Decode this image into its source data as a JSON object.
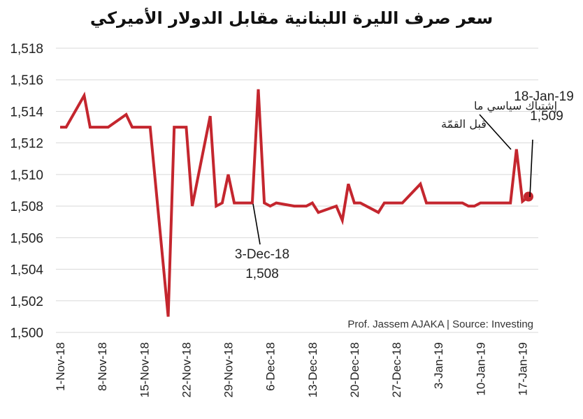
{
  "chart_data": {
    "type": "line",
    "title": "سعر صرف الليرة اللبنانية مقابل الدولار الأميركي",
    "source": "Prof. Jassem AJAKA | Source: Investing",
    "ylim": [
      1500,
      1518
    ],
    "yticks": [
      "1,500",
      "1,502",
      "1,504",
      "1,506",
      "1,508",
      "1,510",
      "1,512",
      "1,514",
      "1,516",
      "1,518"
    ],
    "xticks": [
      "1-Nov-18",
      "8-Nov-18",
      "15-Nov-18",
      "22-Nov-18",
      "29-Nov-18",
      "6-Dec-18",
      "13-Dec-18",
      "20-Dec-18",
      "27-Dec-18",
      "3-Jan-19",
      "10-Jan-19",
      "17-Jan-19"
    ],
    "grid": true,
    "color": "#c4262e",
    "series": [
      {
        "x": [
          "1-Nov-18",
          "2-Nov-18",
          "5-Nov-18",
          "6-Nov-18",
          "7-Nov-18",
          "8-Nov-18",
          "9-Nov-18",
          "12-Nov-18",
          "13-Nov-18",
          "14-Nov-18",
          "15-Nov-18",
          "16-Nov-18",
          "19-Nov-18",
          "20-Nov-18",
          "21-Nov-18",
          "22-Nov-18",
          "23-Nov-18",
          "26-Nov-18",
          "27-Nov-18",
          "28-Nov-18",
          "29-Nov-18",
          "30-Nov-18",
          "3-Dec-18",
          "4-Dec-18",
          "5-Dec-18",
          "6-Dec-18",
          "7-Dec-18",
          "10-Dec-18",
          "11-Dec-18",
          "12-Dec-18",
          "13-Dec-18",
          "14-Dec-18",
          "17-Dec-18",
          "18-Dec-18",
          "19-Dec-18",
          "20-Dec-18",
          "21-Dec-18",
          "24-Dec-18",
          "25-Dec-18",
          "26-Dec-18",
          "27-Dec-18",
          "28-Dec-18",
          "31-Dec-18",
          "1-Jan-19",
          "2-Jan-19",
          "3-Jan-19",
          "4-Jan-19",
          "7-Jan-19",
          "8-Jan-19",
          "9-Jan-19",
          "10-Jan-19",
          "11-Jan-19",
          "14-Jan-19",
          "15-Jan-19",
          "16-Jan-19",
          "17-Jan-19",
          "18-Jan-19"
        ],
        "values": [
          1513,
          1513,
          1515,
          1513,
          1513,
          1513,
          1513,
          1513.8,
          1513,
          1513,
          1513,
          1513,
          1501,
          1513,
          1513,
          1513,
          1508,
          1513.7,
          1508,
          1508.2,
          1510,
          1508.2,
          1508.2,
          1515.4,
          1508.2,
          1508,
          1508.2,
          1508,
          1508,
          1508,
          1508.2,
          1507.6,
          1508,
          1507.1,
          1509.4,
          1508.2,
          1508.2,
          1507.6,
          1508.2,
          1508.2,
          1508.2,
          1508.2,
          1509.4,
          1508.2,
          1508.2,
          1508.2,
          1508.2,
          1508.2,
          1508,
          1508,
          1508.2,
          1508.2,
          1508.2,
          1508.2,
          1511.6,
          1508.3,
          1508.6
        ]
      }
    ],
    "annotations": [
      {
        "date": "3-Dec-18",
        "value": "1,508"
      },
      {
        "text_line1": "إشتباك سياسي ما",
        "text_line2": "قبل القمّة"
      },
      {
        "date": "18-Jan-19",
        "value": "1,509"
      }
    ]
  }
}
